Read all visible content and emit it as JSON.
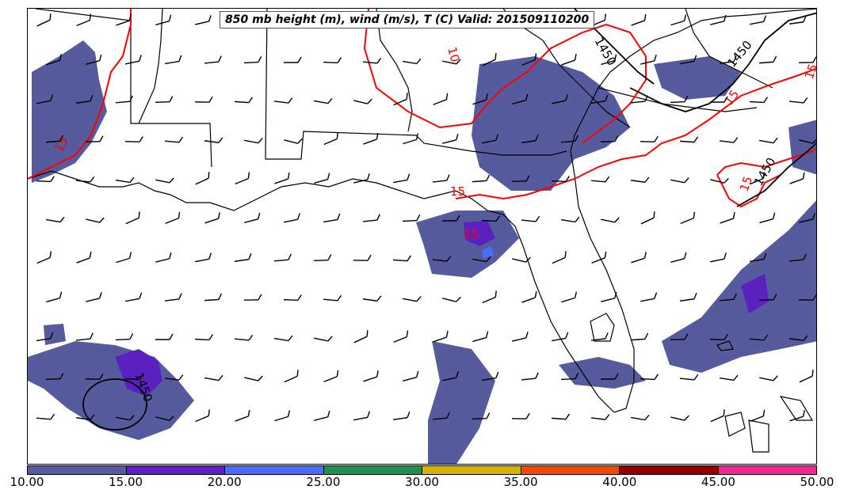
{
  "title": "850 mb height (m), wind (m/s), T (C) Valid: 201509110200",
  "colors": {
    "coast": "#000000",
    "temp_contour": "#ff0000",
    "height_contour": "#000000",
    "wind_shade": "#555b9c"
  },
  "contour_labels": {
    "temp": [
      "15",
      "10",
      "15",
      "15",
      "15",
      "15",
      "15"
    ],
    "height": [
      "1450",
      "1450",
      "1450",
      "1450"
    ]
  },
  "colorbar": {
    "colors": [
      "#555b9c",
      "#5a20c0",
      "#4c6cff",
      "#1f9050",
      "#d4b20c",
      "#f04a06",
      "#930000",
      "#f0288f"
    ],
    "labels": [
      "10.00",
      "15.00",
      "20.00",
      "25.00",
      "30.00",
      "35.00",
      "40.00",
      "45.00",
      "50.00"
    ]
  }
}
